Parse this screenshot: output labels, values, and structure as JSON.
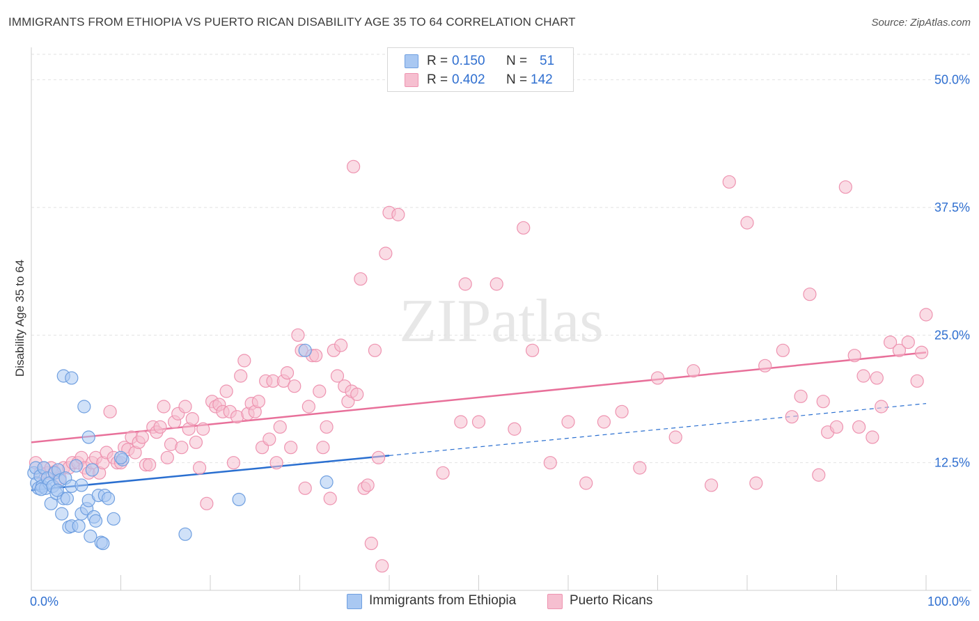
{
  "title": "IMMIGRANTS FROM ETHIOPIA VS PUERTO RICAN DISABILITY AGE 35 TO 64 CORRELATION CHART",
  "source": "Source: ZipAtlas.com",
  "watermark": "ZIPatlas",
  "colors": {
    "blue_fill": "#a9c8f2",
    "blue_stroke": "#6f9fe0",
    "blue_line": "#2a6fd0",
    "pink_fill": "#f6bfd0",
    "pink_stroke": "#ee93b0",
    "pink_line": "#e8709a",
    "value_text": "#2f6fd0"
  },
  "legend": {
    "rows": [
      {
        "r_label": "R =",
        "r_value": "0.150",
        "n_label": "N =",
        "n_value": "51"
      },
      {
        "r_label": "R =",
        "r_value": "0.402",
        "n_label": "N =",
        "n_value": "142"
      }
    ]
  },
  "chart_data": {
    "type": "scatter",
    "xlabel": "",
    "ylabel": "Disability Age 35 to 64",
    "xlim": [
      0,
      100
    ],
    "ylim": [
      0,
      52.5
    ],
    "x_tick_labels": [
      "0.0%",
      "100.0%"
    ],
    "y_ticks": [
      12.5,
      25.0,
      37.5,
      50.0
    ],
    "y_tick_labels": [
      "12.5%",
      "25.0%",
      "37.5%",
      "50.0%"
    ],
    "grid": true,
    "series": [
      {
        "name": "Immigrants from Ethiopia",
        "R": 0.15,
        "N": 51,
        "trend": {
          "x0": 0,
          "y0": 9.8,
          "x1": 40,
          "y1": 13.2,
          "dashed_to_x": 100,
          "dashed_to_y": 18.3
        },
        "points": [
          [
            0.3,
            11.5
          ],
          [
            0.5,
            12.0
          ],
          [
            0.6,
            10.5
          ],
          [
            0.8,
            10.0
          ],
          [
            1.0,
            11.2
          ],
          [
            1.2,
            10.2
          ],
          [
            1.4,
            12.0
          ],
          [
            1.6,
            10.0
          ],
          [
            1.8,
            11.0
          ],
          [
            2.0,
            10.5
          ],
          [
            2.2,
            8.5
          ],
          [
            2.4,
            10.2
          ],
          [
            2.6,
            11.5
          ],
          [
            2.8,
            9.5
          ],
          [
            3.0,
            11.8
          ],
          [
            3.2,
            10.8
          ],
          [
            3.4,
            7.5
          ],
          [
            3.6,
            9.0
          ],
          [
            3.8,
            11.0
          ],
          [
            4.0,
            9.0
          ],
          [
            4.2,
            6.2
          ],
          [
            4.5,
            6.3
          ],
          [
            5.0,
            12.2
          ],
          [
            5.3,
            6.3
          ],
          [
            5.6,
            7.5
          ],
          [
            6.2,
            8.0
          ],
          [
            6.4,
            8.8
          ],
          [
            6.6,
            5.3
          ],
          [
            6.8,
            11.8
          ],
          [
            7.0,
            7.2
          ],
          [
            7.2,
            6.8
          ],
          [
            7.5,
            9.3
          ],
          [
            7.8,
            4.7
          ],
          [
            8.0,
            4.6
          ],
          [
            8.2,
            9.3
          ],
          [
            8.6,
            9.0
          ],
          [
            9.2,
            7.0
          ],
          [
            10.2,
            12.8
          ],
          [
            3.6,
            21.0
          ],
          [
            4.5,
            20.8
          ],
          [
            5.9,
            18.0
          ],
          [
            6.4,
            15.0
          ],
          [
            10.0,
            13.0
          ],
          [
            17.2,
            5.5
          ],
          [
            23.2,
            8.9
          ],
          [
            30.6,
            23.5
          ],
          [
            33.0,
            10.6
          ],
          [
            4.5,
            10.2
          ],
          [
            2.9,
            9.8
          ],
          [
            1.1,
            9.9
          ],
          [
            5.6,
            10.3
          ]
        ]
      },
      {
        "name": "Puerto Ricans",
        "R": 0.402,
        "N": 142,
        "trend": {
          "x0": 0,
          "y0": 14.5,
          "x1": 100,
          "y1": 23.3
        },
        "points": [
          [
            0.5,
            12.5
          ],
          [
            1.0,
            11.5
          ],
          [
            1.4,
            12.0
          ],
          [
            1.8,
            11.5
          ],
          [
            2.2,
            12.0
          ],
          [
            2.6,
            11.6
          ],
          [
            3.2,
            11.0
          ],
          [
            3.6,
            12.0
          ],
          [
            4.2,
            12.0
          ],
          [
            4.6,
            12.5
          ],
          [
            5.2,
            12.5
          ],
          [
            5.6,
            13.0
          ],
          [
            6.0,
            12.0
          ],
          [
            6.4,
            11.5
          ],
          [
            6.8,
            12.5
          ],
          [
            7.2,
            13.0
          ],
          [
            7.6,
            11.5
          ],
          [
            8.0,
            12.5
          ],
          [
            8.4,
            13.5
          ],
          [
            8.8,
            17.5
          ],
          [
            9.2,
            13.0
          ],
          [
            9.6,
            12.5
          ],
          [
            10.0,
            12.5
          ],
          [
            10.4,
            14.0
          ],
          [
            10.8,
            13.8
          ],
          [
            11.2,
            15.0
          ],
          [
            11.6,
            13.5
          ],
          [
            12.0,
            14.5
          ],
          [
            12.4,
            15.0
          ],
          [
            12.8,
            12.3
          ],
          [
            13.2,
            12.3
          ],
          [
            13.6,
            16.0
          ],
          [
            14.0,
            15.5
          ],
          [
            14.4,
            16.0
          ],
          [
            14.8,
            18.0
          ],
          [
            15.2,
            13.0
          ],
          [
            15.6,
            14.3
          ],
          [
            16.0,
            16.5
          ],
          [
            16.4,
            17.3
          ],
          [
            16.8,
            14.0
          ],
          [
            17.2,
            18.0
          ],
          [
            17.6,
            15.8
          ],
          [
            18.0,
            16.8
          ],
          [
            18.4,
            14.5
          ],
          [
            18.8,
            12.0
          ],
          [
            19.2,
            15.8
          ],
          [
            19.6,
            8.5
          ],
          [
            20.2,
            18.5
          ],
          [
            20.6,
            18.0
          ],
          [
            21.0,
            18.2
          ],
          [
            21.4,
            17.5
          ],
          [
            21.8,
            19.5
          ],
          [
            22.2,
            17.5
          ],
          [
            22.6,
            12.5
          ],
          [
            23.0,
            17.0
          ],
          [
            23.4,
            21.0
          ],
          [
            23.8,
            22.5
          ],
          [
            24.2,
            17.3
          ],
          [
            24.6,
            18.3
          ],
          [
            25.0,
            17.5
          ],
          [
            25.4,
            18.5
          ],
          [
            25.8,
            14.0
          ],
          [
            26.2,
            20.5
          ],
          [
            26.6,
            14.8
          ],
          [
            27.0,
            20.5
          ],
          [
            27.4,
            12.5
          ],
          [
            27.8,
            16.0
          ],
          [
            28.2,
            20.5
          ],
          [
            28.6,
            21.3
          ],
          [
            29.0,
            14.0
          ],
          [
            29.4,
            20.0
          ],
          [
            29.8,
            25.0
          ],
          [
            30.2,
            23.5
          ],
          [
            30.6,
            10.0
          ],
          [
            31.0,
            18.0
          ],
          [
            31.4,
            23.0
          ],
          [
            31.8,
            23.0
          ],
          [
            32.2,
            19.5
          ],
          [
            32.6,
            14.0
          ],
          [
            33.0,
            16.0
          ],
          [
            33.4,
            9.0
          ],
          [
            33.8,
            23.5
          ],
          [
            34.2,
            21.0
          ],
          [
            34.6,
            24.0
          ],
          [
            35.0,
            20.0
          ],
          [
            35.4,
            18.5
          ],
          [
            35.8,
            19.5
          ],
          [
            36.0,
            41.5
          ],
          [
            36.4,
            19.2
          ],
          [
            36.8,
            30.5
          ],
          [
            37.2,
            10.0
          ],
          [
            37.6,
            10.3
          ],
          [
            38.0,
            4.6
          ],
          [
            38.4,
            23.5
          ],
          [
            38.8,
            13.0
          ],
          [
            39.2,
            2.4
          ],
          [
            39.6,
            33.0
          ],
          [
            40.0,
            37.0
          ],
          [
            41.0,
            36.8
          ],
          [
            46.0,
            11.5
          ],
          [
            48.0,
            16.5
          ],
          [
            48.5,
            30.0
          ],
          [
            50.0,
            16.5
          ],
          [
            52.0,
            30.0
          ],
          [
            55.0,
            35.5
          ],
          [
            56.0,
            23.5
          ],
          [
            58.0,
            12.5
          ],
          [
            60.0,
            16.5
          ],
          [
            62.0,
            10.5
          ],
          [
            66.0,
            17.5
          ],
          [
            68.0,
            12.0
          ],
          [
            72.0,
            15.0
          ],
          [
            76.0,
            10.3
          ],
          [
            78.0,
            40.0
          ],
          [
            80.0,
            36.0
          ],
          [
            81.0,
            10.5
          ],
          [
            82.0,
            22.0
          ],
          [
            84.0,
            23.5
          ],
          [
            85.0,
            17.0
          ],
          [
            86.0,
            19.0
          ],
          [
            87.0,
            29.0
          ],
          [
            88.0,
            11.3
          ],
          [
            89.0,
            15.5
          ],
          [
            90.0,
            16.0
          ],
          [
            91.0,
            39.5
          ],
          [
            92.0,
            23.0
          ],
          [
            93.0,
            21.0
          ],
          [
            94.0,
            15.0
          ],
          [
            95.0,
            18.0
          ],
          [
            96.0,
            24.3
          ],
          [
            97.0,
            23.5
          ],
          [
            98.0,
            24.3
          ],
          [
            99.0,
            20.5
          ],
          [
            100.0,
            27.0
          ],
          [
            99.5,
            23.3
          ],
          [
            94.5,
            20.8
          ],
          [
            92.5,
            16.0
          ],
          [
            88.5,
            18.5
          ],
          [
            74.0,
            21.5
          ],
          [
            70.0,
            20.8
          ],
          [
            64.0,
            16.5
          ],
          [
            54.0,
            15.8
          ]
        ]
      }
    ]
  },
  "bottom_legend": {
    "items": [
      "Immigrants from Ethiopia",
      "Puerto Ricans"
    ]
  }
}
